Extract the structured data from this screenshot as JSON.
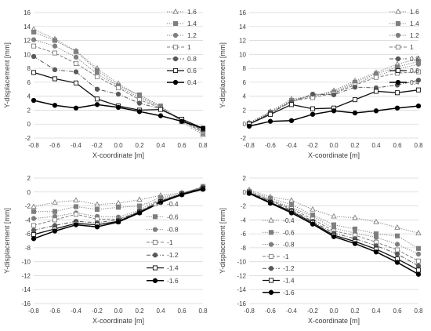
{
  "chart_data": [
    {
      "type": "line",
      "x": [
        -0.8,
        -0.6,
        -0.4,
        -0.2,
        0,
        0.2,
        0.4,
        0.6,
        0.8
      ],
      "xlabel": "X-coordinate [m]",
      "ylabel": "Y-displacement [mm]",
      "xlim": [
        -0.8,
        0.8
      ],
      "ylim": [
        -2,
        16
      ],
      "xticks": [
        "-0.8",
        "-0.6",
        "-0.4",
        "-0.2",
        "0.0",
        "0.2",
        "0.4",
        "0.6",
        "0.8"
      ],
      "yticks": [
        "-2",
        "0",
        "2",
        "4",
        "6",
        "8",
        "10",
        "12",
        "14",
        "16"
      ],
      "grid": true,
      "legend_position": "top-right",
      "series": [
        {
          "name": "1.6",
          "values": [
            13.6,
            12.2,
            10.5,
            8.0,
            5.8,
            4.0,
            2.5,
            0.3,
            -1.5
          ]
        },
        {
          "name": "1.4",
          "values": [
            13.2,
            12.0,
            10.4,
            7.7,
            5.5,
            4.2,
            2.6,
            0.5,
            -1.3
          ]
        },
        {
          "name": "1.2",
          "values": [
            12.1,
            11.2,
            9.6,
            7.2,
            5.4,
            3.8,
            2.4,
            0.6,
            -1.2
          ]
        },
        {
          "name": "1",
          "values": [
            11.2,
            10.2,
            8.7,
            6.8,
            5.2,
            3.5,
            2.3,
            0.5,
            -1.1
          ]
        },
        {
          "name": "0.8",
          "values": [
            9.7,
            7.8,
            7.5,
            5.0,
            4.3,
            3.0,
            2.2,
            0.6,
            -0.9
          ]
        },
        {
          "name": "0.6",
          "values": [
            7.4,
            6.5,
            5.9,
            3.6,
            2.6,
            2.0,
            2.1,
            0.7,
            -0.6
          ]
        },
        {
          "name": "0.4",
          "values": [
            3.4,
            2.7,
            2.3,
            2.8,
            2.4,
            1.8,
            1.2,
            0.4,
            -0.6
          ]
        }
      ]
    },
    {
      "type": "line",
      "x": [
        -0.8,
        -0.6,
        -0.4,
        -0.2,
        0,
        0.2,
        0.4,
        0.6,
        0.8
      ],
      "xlabel": "X-coordinate [m]",
      "ylabel": "Y-displacement [mm]",
      "xlim": [
        -0.8,
        0.8
      ],
      "ylim": [
        -2,
        16
      ],
      "xticks": [
        "-0.8",
        "-0.6",
        "-0.4",
        "-0.2",
        "0.0",
        "0.2",
        "0.4",
        "0.6",
        "0.8"
      ],
      "yticks": [
        "-2",
        "0",
        "2",
        "4",
        "6",
        "8",
        "10",
        "12",
        "14",
        "16"
      ],
      "grid": true,
      "legend_position": "top-right",
      "series": [
        {
          "name": "1.6",
          "values": [
            0.2,
            1.8,
            3.6,
            4.0,
            4.8,
            6.2,
            7.4,
            8.6,
            9.4
          ]
        },
        {
          "name": "1.4",
          "values": [
            0.1,
            1.7,
            3.4,
            4.1,
            4.6,
            6.0,
            7.2,
            8.2,
            9.0
          ]
        },
        {
          "name": "1.2",
          "values": [
            0.1,
            1.6,
            3.3,
            4.0,
            4.5,
            5.8,
            6.9,
            7.9,
            8.6
          ]
        },
        {
          "name": "1",
          "values": [
            0.0,
            1.5,
            3.3,
            3.8,
            4.4,
            5.6,
            6.7,
            7.3,
            7.5
          ]
        },
        {
          "name": "0.8",
          "values": [
            0.0,
            1.6,
            3.2,
            4.3,
            4.2,
            5.3,
            5.2,
            5.6,
            6.3
          ]
        },
        {
          "name": "0.6",
          "values": [
            0.0,
            1.4,
            2.8,
            2.2,
            2.3,
            3.5,
            4.7,
            4.5,
            4.9
          ]
        },
        {
          "name": "0.4",
          "values": [
            -0.3,
            0.4,
            0.5,
            1.4,
            1.9,
            1.6,
            1.9,
            2.3,
            2.6
          ]
        }
      ]
    },
    {
      "type": "line",
      "x": [
        -0.8,
        -0.6,
        -0.4,
        -0.2,
        0,
        0.2,
        0.4,
        0.6,
        0.8
      ],
      "xlabel": "X-coordinate [m]",
      "ylabel": "Y-displacement [mm]",
      "xlim": [
        -0.8,
        0.8
      ],
      "ylim": [
        -16,
        2
      ],
      "xticks": [
        "-0.8",
        "-0.6",
        "-0.4",
        "-0.2",
        "0.0",
        "0.2",
        "0.4",
        "0.6",
        "0.8"
      ],
      "yticks": [
        "-16",
        "-14",
        "-12",
        "-10",
        "-8",
        "-6",
        "-4",
        "-2",
        "0",
        "2"
      ],
      "grid": true,
      "legend_position": "bottom-right",
      "series": [
        {
          "name": "-0.4",
          "values": [
            -2.1,
            -1.5,
            -1.2,
            -1.8,
            -1.6,
            -1.1,
            -0.5,
            -0.1,
            0.6
          ]
        },
        {
          "name": "-0.6",
          "values": [
            -2.8,
            -2.8,
            -2.1,
            -2.5,
            -2.2,
            -2.0,
            -0.8,
            -0.2,
            0.7
          ]
        },
        {
          "name": "-0.8",
          "values": [
            -3.8,
            -3.5,
            -3.0,
            -3.5,
            -3.6,
            -2.6,
            -1.0,
            -0.3,
            0.8
          ]
        },
        {
          "name": "-1",
          "values": [
            -4.8,
            -4.0,
            -3.2,
            -3.9,
            -3.9,
            -2.8,
            -1.2,
            -0.3,
            0.8
          ]
        },
        {
          "name": "-1.2",
          "values": [
            -5.5,
            -4.8,
            -4.2,
            -4.4,
            -4.0,
            -2.8,
            -1.3,
            -0.3,
            0.7
          ]
        },
        {
          "name": "-1.4",
          "values": [
            -6.1,
            -5.3,
            -4.5,
            -4.7,
            -4.2,
            -2.9,
            -1.4,
            -0.3,
            0.5
          ]
        },
        {
          "name": "-1.6",
          "values": [
            -6.7,
            -5.6,
            -4.7,
            -5.0,
            -4.3,
            -3.0,
            -1.5,
            -0.4,
            0.4
          ]
        }
      ]
    },
    {
      "type": "line",
      "x": [
        -0.8,
        -0.6,
        -0.4,
        -0.2,
        0,
        0.2,
        0.4,
        0.6,
        0.8
      ],
      "xlabel": "X-coordinate [m]",
      "ylabel": "Y-displacement [mm]",
      "xlim": [
        -0.8,
        0.8
      ],
      "ylim": [
        -16,
        2
      ],
      "xticks": [
        "-0.8",
        "-0.6",
        "-0.4",
        "-0.2",
        "0.0",
        "0.2",
        "0.4",
        "0.6",
        "0.8"
      ],
      "yticks": [
        "-16",
        "-14",
        "-12",
        "-10",
        "-8",
        "-6",
        "-4",
        "-2",
        "0",
        "2"
      ],
      "grid": true,
      "legend_position": "bottom-left",
      "series": [
        {
          "name": "-0.4",
          "values": [
            0.3,
            -0.7,
            -1.2,
            -2.5,
            -3.5,
            -3.7,
            -4.3,
            -5.1,
            -5.9
          ]
        },
        {
          "name": "-0.6",
          "values": [
            0.1,
            -0.9,
            -1.8,
            -3.3,
            -4.7,
            -5.3,
            -6.0,
            -6.3,
            -8.1
          ]
        },
        {
          "name": "-0.8",
          "values": [
            0.1,
            -1.1,
            -2.2,
            -3.5,
            -5.2,
            -5.9,
            -6.5,
            -7.5,
            -8.9
          ]
        },
        {
          "name": "-1",
          "values": [
            0.0,
            -1.2,
            -2.4,
            -3.9,
            -5.6,
            -6.2,
            -7.2,
            -8.3,
            -9.9
          ]
        },
        {
          "name": "-1.2",
          "values": [
            -0.1,
            -1.3,
            -2.6,
            -4.2,
            -5.9,
            -6.7,
            -7.7,
            -8.9,
            -10.6
          ]
        },
        {
          "name": "-1.4",
          "values": [
            -0.1,
            -1.5,
            -2.8,
            -4.4,
            -6.2,
            -7.1,
            -8.2,
            -9.6,
            -11.2
          ]
        },
        {
          "name": "-1.6",
          "values": [
            -0.2,
            -1.6,
            -3.0,
            -4.6,
            -6.4,
            -7.4,
            -8.6,
            -10.1,
            -11.8
          ]
        }
      ]
    }
  ]
}
